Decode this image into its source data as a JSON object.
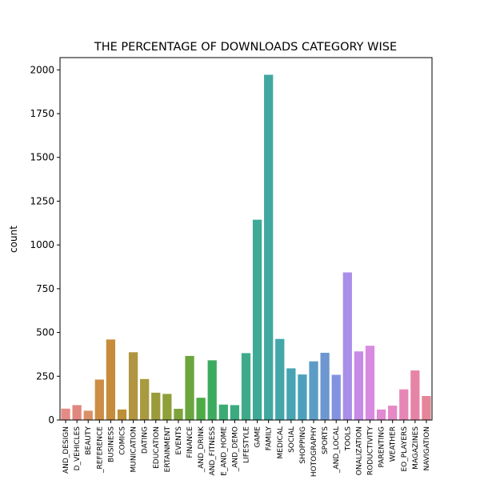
{
  "chart_data": {
    "type": "bar",
    "title": "THE PERCENTAGE OF DOWNLOADS CATEGORY WISE",
    "xlabel": "",
    "ylabel": "count",
    "ylim": [
      0,
      2070
    ],
    "yticks": [
      "0",
      "250",
      "500",
      "750",
      "1000",
      "1250",
      "1500",
      "1750",
      "2000"
    ],
    "grid": false,
    "categories": [
      "AND_DESIGN",
      "D_VEHICLES",
      "BEAUTY",
      "_REFERENCE",
      "BUSINESS",
      "COMICS",
      "MUNICATION",
      "DATING",
      "EDUCATION",
      "ERTAINMENT",
      "EVENTS",
      "FINANCE",
      "_AND_DRINK",
      "AND_FITNESS",
      "E_AND_HOME",
      "_AND_DEMO",
      "LIFESTYLE",
      "GAME",
      "FAMILY",
      "MEDICAL",
      "SOCIAL",
      "SHOPPING",
      "HOTOGRAPHY",
      "SPORTS",
      "_AND_LOCAL",
      "TOOLS",
      "ONALIZATION",
      "RODUCTIVITY",
      "PARENTING",
      "WEATHER",
      "EO_PLAYERS",
      "MAGAZINES",
      "NAVIGATION"
    ],
    "values": [
      65,
      85,
      53,
      231,
      460,
      60,
      387,
      234,
      156,
      149,
      64,
      366,
      127,
      341,
      88,
      85,
      382,
      1144,
      1972,
      463,
      295,
      260,
      335,
      384,
      258,
      843,
      392,
      424,
      60,
      82,
      175,
      283,
      137
    ],
    "colors": [
      "#e58b85",
      "#e0877f",
      "#d99066",
      "#cd8d45",
      "#c68c3c",
      "#bd8f38",
      "#b19540",
      "#a89a3e",
      "#9c9b3c",
      "#8fa03a",
      "#7ea33b",
      "#6aa63d",
      "#4eaa45",
      "#3dab5f",
      "#3cab73",
      "#3baa7f",
      "#3eaa89",
      "#3ea997",
      "#40a8a0",
      "#43a7aa",
      "#46a4b3",
      "#4ba1bd",
      "#5b9dc6",
      "#6e97d1",
      "#8392e0",
      "#a98fe8",
      "#c68be6",
      "#d88ae0",
      "#e289d2",
      "#e588c5",
      "#e686b6",
      "#e684a8",
      "#e5859a"
    ]
  }
}
